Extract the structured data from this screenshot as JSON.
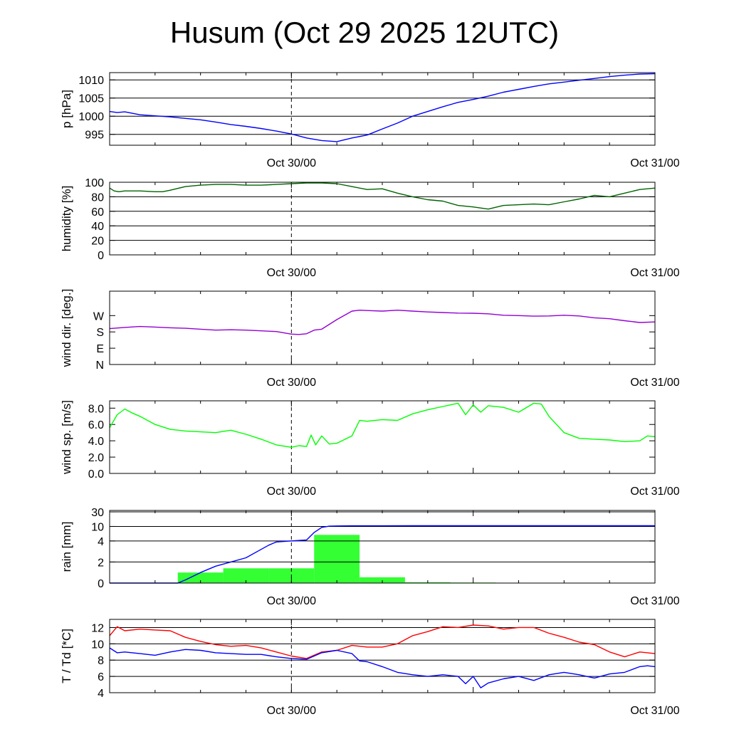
{
  "title": "Husum (Oct 29 2025 12UTC)",
  "colors": {
    "pressure": "#0000ff",
    "humidity": "#006400",
    "wind_dir": "#9400d3",
    "wind_speed": "#00ff00",
    "rain_bar": "#33ff33",
    "rain_line": "#0000ff",
    "temperature": "#ff0000",
    "dewpoint": "#0000ff",
    "grid": "#000000"
  },
  "chart_data": [
    {
      "id": "pressure",
      "type": "line",
      "ylabel": "p [hPa]",
      "xlim": [
        0,
        36
      ],
      "ylim": [
        992,
        1012
      ],
      "yticks": [
        995,
        1000,
        1005,
        1010
      ],
      "ytick_labels": [
        "995",
        "1000",
        "1005",
        "1010"
      ],
      "grid": true,
      "x_tick_labels": [
        {
          "x": 12,
          "label": "Oct 30/00"
        },
        {
          "x": 36,
          "label": "Oct 31/00"
        }
      ],
      "now_line": 12,
      "series": [
        {
          "color_key": "pressure",
          "x": [
            0,
            0.5,
            1,
            2,
            3,
            4,
            5,
            6,
            7,
            8,
            9,
            10,
            11,
            12,
            13,
            14,
            15,
            16,
            17,
            18,
            19,
            20,
            21,
            22,
            23,
            24,
            25,
            26,
            27,
            28,
            29,
            30,
            31,
            32,
            33,
            34,
            35,
            36
          ],
          "y": [
            1001.3,
            1001.0,
            1001.2,
            1000.4,
            1000.1,
            999.8,
            999.4,
            999.0,
            998.4,
            997.7,
            997.2,
            996.6,
            995.9,
            995.1,
            994.0,
            993.3,
            993.0,
            994.0,
            994.8,
            996.5,
            998.1,
            1000.0,
            1001.3,
            1002.6,
            1003.8,
            1004.6,
            1005.5,
            1006.6,
            1007.4,
            1008.2,
            1008.9,
            1009.4,
            1009.9,
            1010.4,
            1010.9,
            1011.3,
            1011.6,
            1011.7
          ]
        }
      ]
    },
    {
      "id": "humidity",
      "type": "line",
      "ylabel": "humidity [%]",
      "xlim": [
        0,
        36
      ],
      "ylim": [
        0,
        100
      ],
      "yticks": [
        0,
        20,
        40,
        60,
        80,
        100
      ],
      "ytick_labels": [
        "0",
        "20",
        "40",
        "60",
        "80",
        "100"
      ],
      "grid": true,
      "x_tick_labels": [
        {
          "x": 12,
          "label": "Oct 30/00"
        },
        {
          "x": 36,
          "label": "Oct 31/00"
        }
      ],
      "now_line": 12,
      "series": [
        {
          "color_key": "humidity",
          "x": [
            0,
            0.3,
            0.6,
            1,
            2,
            3,
            3.5,
            4,
            5,
            6,
            7,
            8,
            9,
            10,
            11,
            12,
            13,
            14,
            15,
            16,
            17,
            18,
            19,
            20,
            21,
            21.5,
            22,
            23,
            24,
            25,
            26,
            27,
            28,
            29,
            30,
            31,
            32,
            33,
            34,
            35,
            36
          ],
          "y": [
            92,
            88,
            87,
            88,
            88,
            87,
            87,
            89,
            94,
            96,
            97,
            97,
            96,
            96,
            97,
            98,
            99,
            99,
            98,
            94,
            90,
            91,
            85,
            80,
            76,
            75,
            74,
            68,
            66,
            63,
            68,
            69,
            70,
            69,
            73,
            77,
            82,
            80,
            85,
            90,
            92
          ]
        }
      ]
    },
    {
      "id": "wind_dir",
      "type": "line",
      "ylabel": "wind dir. [deg.]",
      "xlim": [
        0,
        36
      ],
      "ylim": [
        0,
        405
      ],
      "yticks": [
        0,
        90,
        180,
        270
      ],
      "ytick_labels": [
        "N",
        "E",
        "S",
        "W"
      ],
      "grid": false,
      "x_tick_labels": [
        {
          "x": 12,
          "label": "Oct 30/00"
        },
        {
          "x": 36,
          "label": "Oct 31/00"
        }
      ],
      "now_line": 12,
      "series": [
        {
          "color_key": "wind_dir",
          "x": [
            0,
            1,
            2,
            3,
            4,
            5,
            6,
            7,
            8,
            9,
            10,
            11,
            12,
            12.5,
            13,
            13.5,
            14,
            15,
            16,
            16.5,
            17,
            18,
            19,
            20,
            21,
            22,
            23,
            24,
            25,
            26,
            27,
            28,
            29,
            30,
            31,
            32,
            33,
            34,
            35,
            36
          ],
          "y": [
            198,
            205,
            210,
            207,
            203,
            200,
            195,
            190,
            192,
            190,
            186,
            182,
            168,
            166,
            170,
            190,
            195,
            248,
            295,
            300,
            298,
            295,
            300,
            295,
            290,
            287,
            284,
            283,
            280,
            272,
            270,
            267,
            268,
            272,
            268,
            258,
            253,
            242,
            232,
            235
          ]
        }
      ]
    },
    {
      "id": "wind_speed",
      "type": "line",
      "ylabel": "wind sp. [m/s]",
      "xlim": [
        0,
        36
      ],
      "ylim": [
        0,
        8.9
      ],
      "yticks": [
        0,
        2,
        4,
        6,
        8
      ],
      "ytick_labels": [
        "0.0",
        "2.0",
        "4.0",
        "6.0",
        "8.0"
      ],
      "grid": false,
      "x_tick_labels": [
        {
          "x": 12,
          "label": "Oct 30/00"
        },
        {
          "x": 36,
          "label": "Oct 31/00"
        }
      ],
      "now_line": 12,
      "series": [
        {
          "color_key": "wind_speed",
          "x": [
            0,
            0.5,
            1,
            1.5,
            2,
            3,
            4,
            5,
            6,
            7,
            8,
            9,
            10,
            11,
            12,
            12.5,
            13,
            13.3,
            13.6,
            14,
            14.5,
            15,
            16,
            16.5,
            17,
            18,
            19,
            20,
            21,
            22,
            23,
            23.5,
            24,
            24.5,
            25,
            26,
            27,
            28,
            28.5,
            29,
            30,
            31,
            32,
            33,
            34,
            35,
            35.5,
            36
          ],
          "y": [
            5.6,
            7.2,
            7.9,
            7.4,
            7.0,
            6.0,
            5.4,
            5.2,
            5.1,
            5.0,
            5.3,
            4.8,
            4.2,
            3.5,
            3.2,
            3.4,
            3.3,
            4.7,
            3.5,
            4.6,
            3.6,
            3.7,
            4.6,
            6.5,
            6.4,
            6.6,
            6.5,
            7.3,
            7.8,
            8.2,
            8.6,
            7.2,
            8.4,
            7.5,
            8.3,
            8.1,
            7.5,
            8.6,
            8.5,
            7.0,
            5.0,
            4.3,
            4.2,
            4.1,
            3.9,
            4.0,
            4.6,
            4.5
          ]
        }
      ]
    },
    {
      "id": "rain",
      "type": "bar",
      "ylabel": "rain [mm]",
      "xlim": [
        0,
        36
      ],
      "ylim": [
        0,
        30
      ],
      "yscale": "nonlinear",
      "yticks": [
        0,
        2,
        4,
        10,
        30
      ],
      "ytick_labels": [
        "0",
        "2",
        "4",
        "10",
        "30"
      ],
      "grid": true,
      "x_tick_labels": [
        {
          "x": 12,
          "label": "Oct 30/00"
        },
        {
          "x": 36,
          "label": "Oct 31/00"
        }
      ],
      "now_line": 12,
      "bars": [
        {
          "x0": 4.5,
          "x1": 7.5,
          "value": 1.0
        },
        {
          "x0": 7.5,
          "x1": 10.5,
          "value": 1.4
        },
        {
          "x0": 10.5,
          "x1": 13.5,
          "value": 1.4
        },
        {
          "x0": 13.5,
          "x1": 16.5,
          "value": 6.5
        },
        {
          "x0": 16.5,
          "x1": 19.5,
          "value": 0.55
        },
        {
          "x0": 19.5,
          "x1": 22.5,
          "value": 0.08
        },
        {
          "x0": 22.5,
          "x1": 25.5,
          "value": 0.05
        }
      ],
      "series": [
        {
          "color_key": "rain_line",
          "x": [
            0,
            4.5,
            5,
            6,
            7,
            8,
            9,
            10,
            10.5,
            11,
            12,
            13,
            13.5,
            14,
            14.5,
            15,
            16,
            18,
            20,
            24,
            30,
            36
          ],
          "y": [
            0,
            0,
            0.3,
            1.0,
            1.6,
            2.0,
            2.4,
            3.2,
            3.6,
            3.9,
            4.0,
            4.4,
            7.5,
            9.6,
            10.3,
            10.6,
            10.8,
            10.85,
            10.9,
            10.9,
            10.9,
            10.9
          ]
        }
      ]
    },
    {
      "id": "temperature",
      "type": "line",
      "ylabel": "T / Td [*C]",
      "xlim": [
        0,
        36
      ],
      "ylim": [
        4,
        13
      ],
      "yticks": [
        4,
        6,
        8,
        10,
        12
      ],
      "ytick_labels": [
        "4",
        "6",
        "8",
        "10",
        "12"
      ],
      "grid": true,
      "x_tick_labels": [
        {
          "x": 12,
          "label": "Oct 30/00"
        },
        {
          "x": 36,
          "label": "Oct 31/00"
        }
      ],
      "now_line": 12,
      "series": [
        {
          "color_key": "temperature",
          "x": [
            0,
            0.5,
            1,
            2,
            3,
            4,
            5,
            6,
            7,
            8,
            9,
            10,
            11,
            12,
            13,
            14,
            15,
            16,
            17,
            18,
            19,
            20,
            21,
            22,
            23,
            24,
            25,
            26,
            27,
            28,
            29,
            30,
            31,
            32,
            33,
            34,
            35,
            36
          ],
          "y": [
            11.0,
            12.1,
            11.6,
            11.8,
            11.7,
            11.6,
            10.8,
            10.3,
            9.9,
            9.7,
            9.8,
            9.5,
            9.0,
            8.5,
            8.2,
            9.0,
            9.2,
            9.8,
            9.6,
            9.6,
            10.0,
            11.0,
            11.5,
            12.1,
            12.0,
            12.3,
            12.2,
            11.8,
            12.0,
            12.0,
            11.3,
            10.8,
            10.2,
            9.9,
            9.0,
            8.4,
            9.0,
            8.8
          ]
        },
        {
          "color_key": "dewpoint",
          "x": [
            0,
            0.5,
            1,
            2,
            3,
            4,
            5,
            6,
            7,
            8,
            9,
            10,
            11,
            12,
            13,
            14,
            15,
            16,
            16.5,
            17,
            18,
            19,
            20,
            21,
            22,
            23,
            23.5,
            24,
            24.5,
            25,
            26,
            27,
            28,
            29,
            30,
            31,
            32,
            33,
            34,
            35,
            35.5,
            36
          ],
          "y": [
            9.5,
            8.9,
            9.0,
            8.8,
            8.6,
            9.0,
            9.3,
            9.2,
            8.9,
            8.8,
            8.7,
            8.7,
            8.4,
            8.2,
            8.1,
            8.9,
            9.2,
            8.8,
            7.9,
            7.8,
            7.2,
            6.5,
            6.2,
            6.0,
            6.2,
            6.0,
            5.1,
            6.0,
            4.6,
            5.2,
            5.7,
            6.0,
            5.5,
            6.2,
            6.5,
            6.2,
            5.8,
            6.3,
            6.5,
            7.2,
            7.3,
            7.2
          ]
        }
      ]
    }
  ]
}
